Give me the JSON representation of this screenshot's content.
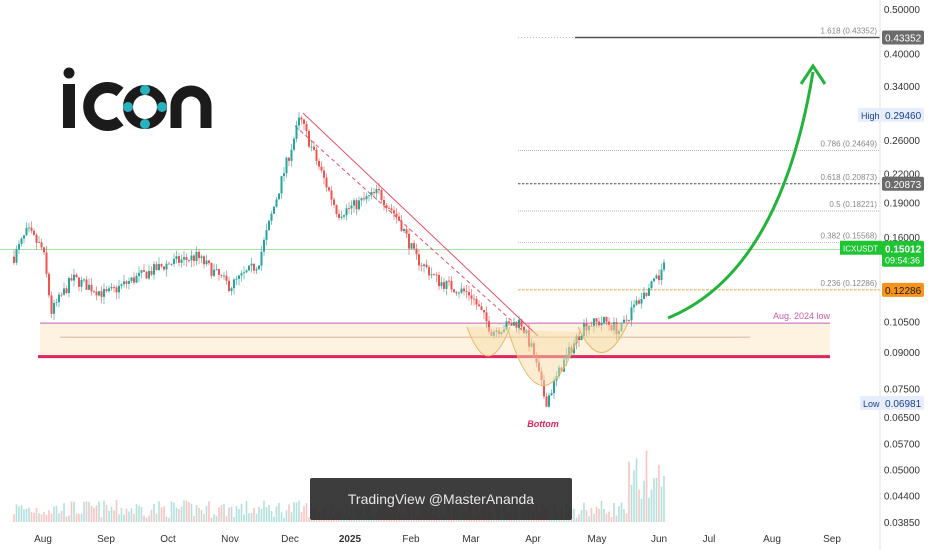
{
  "logo": {
    "text": "icon",
    "color": "#1b1b1b",
    "accent": "#2ab1bf"
  },
  "watermark": {
    "text": "TradingView @MasterAnanda"
  },
  "annotations": {
    "bottom_label": "Bottom",
    "aug_low_label": "Aug. 2024 low"
  },
  "colors": {
    "up": "#26a69a",
    "down": "#ef5350",
    "support": "#e0245e",
    "zone": "#fde9c8",
    "target_arrow": "#22b33a",
    "price_label": "#1ec432",
    "level_label": "#f7931a"
  },
  "price_labels": {
    "symbol": "ICXUSDT",
    "last_price": "0.15012",
    "countdown": "09:54:36",
    "high_text": "High",
    "high_value": "0.29460",
    "low_text": "Low",
    "low_value": "0.06981",
    "fib_target_value": "0.43352",
    "fib_618_value": "0.20873",
    "fib_236_value": "0.12286"
  },
  "chart_data": {
    "type": "line",
    "title": "",
    "xlabel": "",
    "ylabel": "",
    "scale": "log",
    "ylim": [
      0.0385,
      0.5
    ],
    "x_ticks": [
      "Aug",
      "Sep",
      "Oct",
      "Nov",
      "Dec",
      "2025",
      "Feb",
      "Mar",
      "Apr",
      "May",
      "Jun",
      "Jul",
      "Aug",
      "Sep"
    ],
    "y_ticks": [
      "0.50000",
      "0.40000",
      "0.34000",
      "0.26000",
      "0.22000",
      "0.19000",
      "0.16000",
      "0.10500",
      "0.09000",
      "0.07500",
      "0.06500",
      "0.05700",
      "0.05000",
      "0.04400",
      "0.03850"
    ],
    "y_tick_values": [
      0.5,
      0.4,
      0.34,
      0.26,
      0.22,
      0.19,
      0.16,
      0.105,
      0.09,
      0.075,
      0.065,
      0.057,
      0.05,
      0.044,
      0.0385
    ],
    "series": [
      {
        "name": "ICXUSDT",
        "x": [
          "2024-07-01",
          "2024-07-15",
          "2024-08-01",
          "2024-08-05",
          "2024-08-15",
          "2024-09-01",
          "2024-09-15",
          "2024-10-01",
          "2024-10-15",
          "2024-11-01",
          "2024-11-15",
          "2024-11-25",
          "2024-12-06",
          "2024-12-15",
          "2024-12-25",
          "2025-01-01",
          "2025-01-15",
          "2025-01-25",
          "2025-02-03",
          "2025-02-15",
          "2025-03-01",
          "2025-03-11",
          "2025-03-25",
          "2025-04-01",
          "2025-04-07",
          "2025-04-15",
          "2025-04-25",
          "2025-05-05",
          "2025-05-12",
          "2025-05-20",
          "2025-06-01",
          "2025-06-05"
        ],
        "values": [
          0.145,
          0.165,
          0.15,
          0.11,
          0.13,
          0.12,
          0.13,
          0.14,
          0.145,
          0.125,
          0.14,
          0.2,
          0.29,
          0.23,
          0.18,
          0.185,
          0.2,
          0.175,
          0.145,
          0.128,
          0.12,
          0.1,
          0.105,
          0.09,
          0.07,
          0.085,
          0.103,
          0.105,
          0.1,
          0.115,
          0.13,
          0.15012
        ]
      }
    ],
    "fib_levels": [
      {
        "label": "1.618 (0.43352)",
        "value": 0.43352
      },
      {
        "label": "0.786 (0.24649)",
        "value": 0.24649
      },
      {
        "label": "0.618 (0.20873)",
        "value": 0.20873
      },
      {
        "label": "0.5 (0.18221)",
        "value": 0.18221
      },
      {
        "label": "0.382 (0.15568)",
        "value": 0.15568
      },
      {
        "label": "0.236 (0.12286)",
        "value": 0.12286
      }
    ],
    "support_level": 0.088,
    "aug_2024_low": 0.104,
    "high": 0.2946,
    "low": 0.06981,
    "grid": false,
    "legend": "none"
  }
}
